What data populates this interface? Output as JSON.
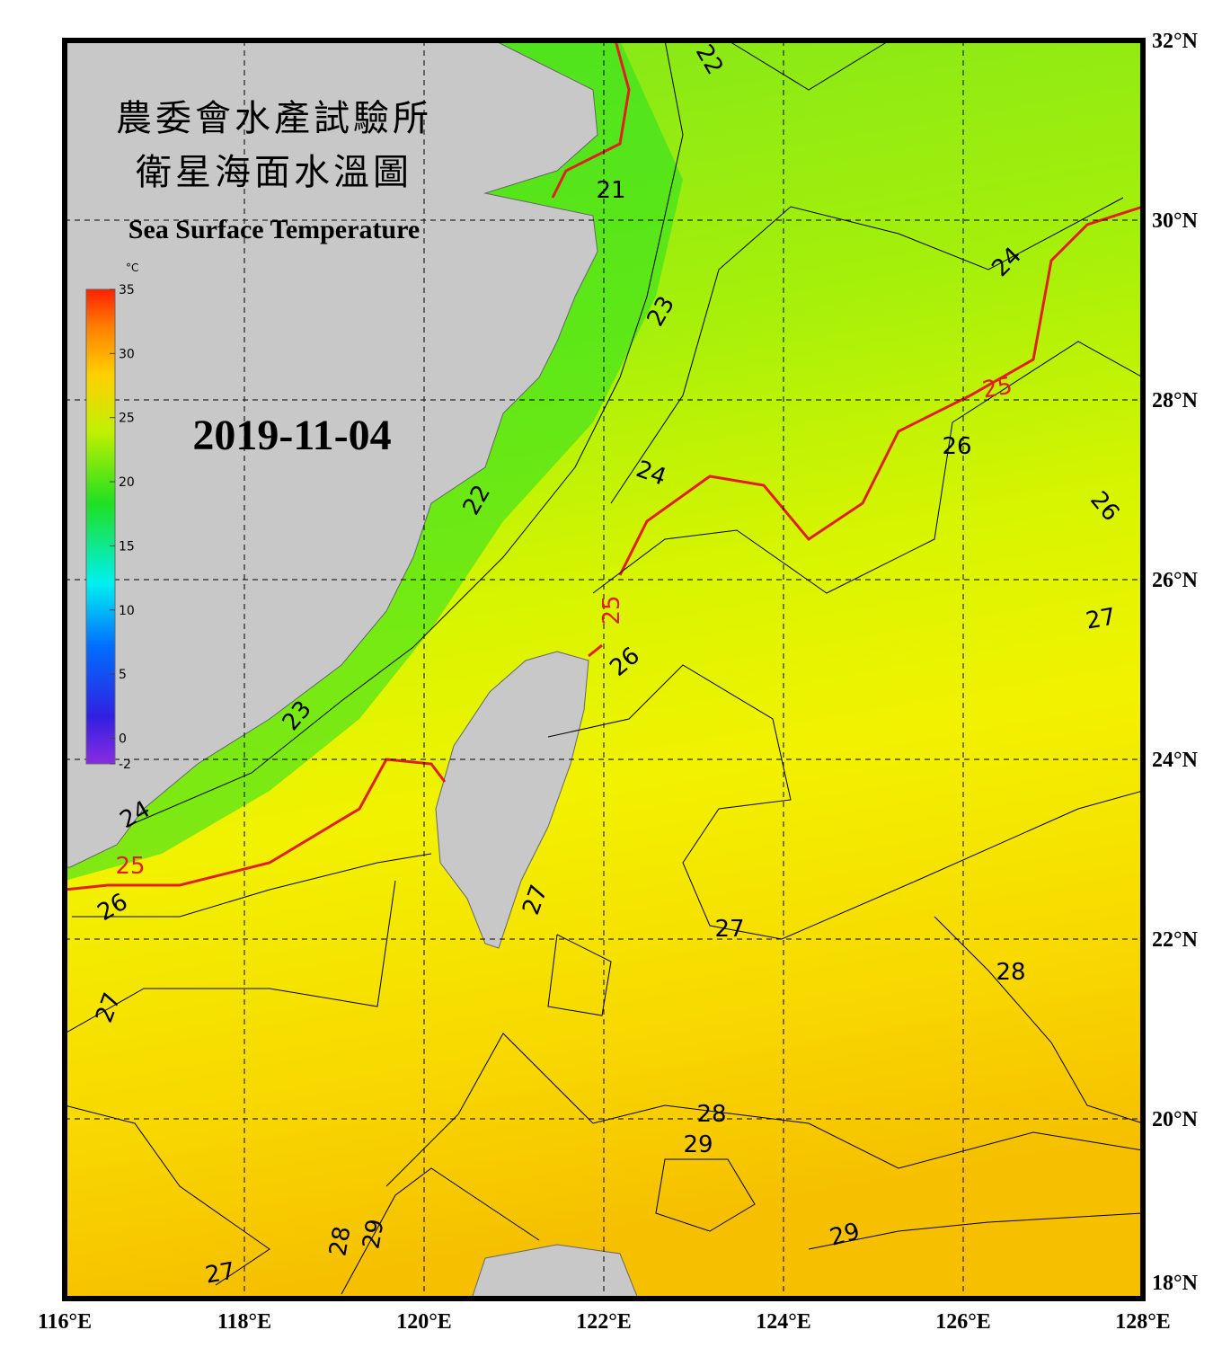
{
  "header": {
    "title_zh_1": "農委會水產試驗所",
    "title_zh_2": "衛星海面水溫圖",
    "title_en": "Sea Surface Temperature"
  },
  "date": "2019-11-04",
  "colorbar": {
    "unit": "°C",
    "range": [
      -2,
      35
    ],
    "ticks": [
      35,
      30,
      25,
      20,
      15,
      10,
      5,
      0,
      -2
    ]
  },
  "lat_ticks": [
    {
      "value": 32,
      "label": "32°N"
    },
    {
      "value": 30,
      "label": "30°N"
    },
    {
      "value": 28,
      "label": "28°N"
    },
    {
      "value": 26,
      "label": "26°N"
    },
    {
      "value": 24,
      "label": "24°N"
    },
    {
      "value": 22,
      "label": "22°N"
    },
    {
      "value": 20,
      "label": "20°N"
    },
    {
      "value": 18,
      "label": "18°N"
    }
  ],
  "lon_ticks": [
    {
      "value": 116,
      "label": "116°E"
    },
    {
      "value": 118,
      "label": "118°E"
    },
    {
      "value": 120,
      "label": "120°E"
    },
    {
      "value": 122,
      "label": "122°E"
    },
    {
      "value": 124,
      "label": "124°E"
    },
    {
      "value": 126,
      "label": "126°E"
    },
    {
      "value": 128,
      "label": "128°E"
    }
  ],
  "contour_labels": [
    {
      "text": "22",
      "color": "#000"
    },
    {
      "text": "21",
      "color": "#000"
    },
    {
      "text": "23",
      "color": "#000"
    },
    {
      "text": "24",
      "color": "#000"
    },
    {
      "text": "25",
      "color": "#e02020"
    },
    {
      "text": "26",
      "color": "#000"
    },
    {
      "text": "24",
      "color": "#000"
    },
    {
      "text": "22",
      "color": "#000"
    },
    {
      "text": "26",
      "color": "#000"
    },
    {
      "text": "25",
      "color": "#e02020"
    },
    {
      "text": "26",
      "color": "#000"
    },
    {
      "text": "27",
      "color": "#000"
    },
    {
      "text": "23",
      "color": "#000"
    },
    {
      "text": "24",
      "color": "#000"
    },
    {
      "text": "25",
      "color": "#e02020"
    },
    {
      "text": "26",
      "color": "#000"
    },
    {
      "text": "27",
      "color": "#000"
    },
    {
      "text": "27",
      "color": "#000"
    },
    {
      "text": "28",
      "color": "#000"
    },
    {
      "text": "27",
      "color": "#000"
    },
    {
      "text": "28",
      "color": "#000"
    },
    {
      "text": "29",
      "color": "#000"
    },
    {
      "text": "28",
      "color": "#000"
    },
    {
      "text": "29",
      "color": "#000"
    },
    {
      "text": "29",
      "color": "#000"
    },
    {
      "text": "27",
      "color": "#000"
    }
  ]
}
